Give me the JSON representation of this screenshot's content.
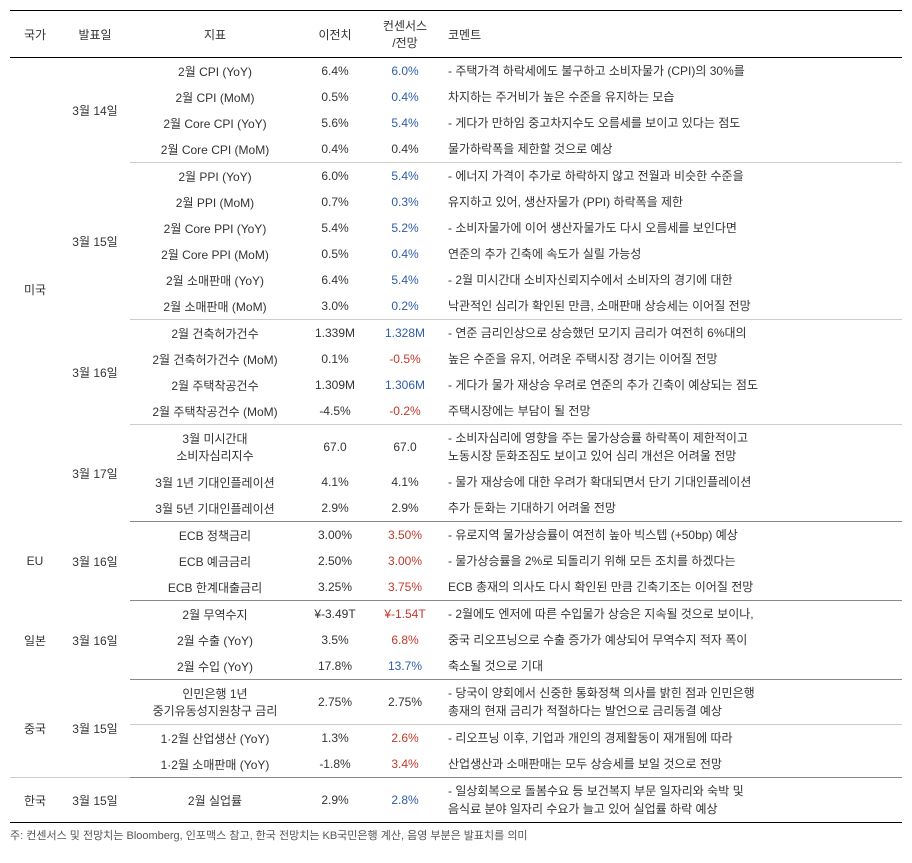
{
  "headers": {
    "country": "국가",
    "date": "발표일",
    "indicator": "지표",
    "prev": "이전치",
    "consensus": "컨센서스\n/전망",
    "comment": "코멘트"
  },
  "colors": {
    "blue": "#2e5ca8",
    "red": "#c0392b",
    "text": "#333333",
    "border_dark": "#000000",
    "border_light": "#cccccc"
  },
  "rows": [
    {
      "country": "미국",
      "date": "3월 14일",
      "ind": "2월 CPI (YoY)",
      "prev": "6.4%",
      "cons": "6.0%",
      "cc": "blue",
      "comment": "- 주택가격 하락세에도 불구하고 소비자물가 (CPI)의 30%를"
    },
    {
      "ind": "2월 CPI (MoM)",
      "prev": "0.5%",
      "cons": "0.4%",
      "cc": "blue",
      "comment": "차지하는 주거비가 높은 수준을 유지하는 모습"
    },
    {
      "ind": "2월 Core CPI (YoY)",
      "prev": "5.6%",
      "cons": "5.4%",
      "cc": "blue",
      "comment": "- 게다가 만하임 중고차지수도 오름세를 보이고 있다는 점도"
    },
    {
      "ind": "2월 Core CPI (MoM)",
      "prev": "0.4%",
      "cons": "0.4%",
      "cc": "",
      "comment": "물가하락폭을 제한할 것으로 예상",
      "thin": true
    },
    {
      "date": "3월 15일",
      "ind": "2월 PPI (YoY)",
      "prev": "6.0%",
      "cons": "5.4%",
      "cc": "blue",
      "comment": "- 에너지 가격이 추가로 하락하지 않고 전월과 비슷한 수준을"
    },
    {
      "ind": "2월 PPI (MoM)",
      "prev": "0.7%",
      "cons": "0.3%",
      "cc": "blue",
      "comment": "유지하고 있어, 생산자물가 (PPI) 하락폭을 제한"
    },
    {
      "ind": "2월 Core PPI (YoY)",
      "prev": "5.4%",
      "cons": "5.2%",
      "cc": "blue",
      "comment": "- 소비자물가에 이어 생산자물가도 다시 오름세를 보인다면"
    },
    {
      "ind": "2월 Core PPI (MoM)",
      "prev": "0.5%",
      "cons": "0.4%",
      "cc": "blue",
      "comment": "연준의 추가 긴축에 속도가 실릴 가능성"
    },
    {
      "ind": "2월 소매판매 (YoY)",
      "prev": "6.4%",
      "cons": "5.4%",
      "cc": "blue",
      "comment": "- 2월 미시간대 소비자신뢰지수에서 소비자의 경기에 대한"
    },
    {
      "ind": "2월 소매판매 (MoM)",
      "prev": "3.0%",
      "cons": "0.2%",
      "cc": "blue",
      "comment": "낙관적인 심리가 확인된 만큼, 소매판매 상승세는 이어질 전망",
      "thin": true
    },
    {
      "date": "3월 16일",
      "ind": "2월 건축허가건수",
      "prev": "1.339M",
      "cons": "1.328M",
      "cc": "blue",
      "comment": "- 연준 금리인상으로 상승했던 모기지 금리가 여전히 6%대의"
    },
    {
      "ind": "2월 건축허가건수 (MoM)",
      "prev": "0.1%",
      "cons": "-0.5%",
      "cc": "red",
      "comment": "높은 수준을 유지, 어려운 주택시장 경기는 이어질 전망"
    },
    {
      "ind": "2월 주택착공건수",
      "prev": "1.309M",
      "cons": "1.306M",
      "cc": "blue",
      "comment": "- 게다가 물가 재상승 우려로 연준의 추가 긴축이 예상되는 점도"
    },
    {
      "ind": "2월 주택착공건수 (MoM)",
      "prev": "-4.5%",
      "cons": "-0.2%",
      "cc": "red",
      "comment": "주택시장에는 부담이 될 전망",
      "thin": true
    },
    {
      "date": "3월 17일",
      "ind": "3월 미시간대\n소비자심리지수",
      "prev": "67.0",
      "cons": "67.0",
      "cc": "",
      "comment": "- 소비자심리에 영향을 주는 물가상승률 하락폭이 제한적이고\n노동시장 둔화조짐도 보이고 있어 심리 개선은 어려울 전망"
    },
    {
      "ind": "3월 1년 기대인플레이션",
      "prev": "4.1%",
      "cons": "4.1%",
      "cc": "",
      "comment": "- 물가 재상승에 대한 우려가 확대되면서 단기 기대인플레이션"
    },
    {
      "ind": "3월 5년 기대인플레이션",
      "prev": "2.9%",
      "cons": "2.9%",
      "cc": "",
      "comment": "추가 둔화는 기대하기 어려울 전망",
      "sep": true
    },
    {
      "country": "EU",
      "date": "3월 16일",
      "ind": "ECB 정책금리",
      "prev": "3.00%",
      "cons": "3.50%",
      "cc": "red",
      "comment": "- 유로지역 물가상승률이 여전히 높아 빅스텝 (+50bp) 예상"
    },
    {
      "ind": "ECB 예금금리",
      "prev": "2.50%",
      "cons": "3.00%",
      "cc": "red",
      "comment": "- 물가상승률을 2%로 되돌리기 위해 모든 조치를 하겠다는"
    },
    {
      "ind": "ECB 한계대출금리",
      "prev": "3.25%",
      "cons": "3.75%",
      "cc": "red",
      "comment": "ECB 총재의 의사도 다시 확인된 만큼 긴축기조는 이어질 전망",
      "sep": true
    },
    {
      "country": "일본",
      "date": "3월 16일",
      "ind": "2월 무역수지",
      "prev": "¥-3.49T",
      "cons": "¥-1.54T",
      "cc": "red",
      "comment": "- 2월에도 엔저에 따른 수입물가 상승은 지속될 것으로 보이나,"
    },
    {
      "ind": "2월 수출 (YoY)",
      "prev": "3.5%",
      "cons": "6.8%",
      "cc": "red",
      "comment": "중국 리오프닝으로 수출 증가가 예상되어 무역수지 적자 폭이"
    },
    {
      "ind": "2월 수입 (YoY)",
      "prev": "17.8%",
      "cons": "13.7%",
      "cc": "blue",
      "comment": "축소될 것으로 기대",
      "sep": true
    },
    {
      "country": "중국",
      "date": "3월 15일",
      "ind": "인민은행 1년\n중기유동성지원창구 금리",
      "prev": "2.75%",
      "cons": "2.75%",
      "cc": "",
      "comment": "- 당국이 양회에서 신중한 통화정책 의사를 밝힌 점과 인민은행\n총재의 현재 금리가 적절하다는 발언으로 금리동결 예상",
      "thin": true
    },
    {
      "ind": "1·2월 산업생산 (YoY)",
      "prev": "1.3%",
      "cons": "2.6%",
      "cc": "red",
      "comment": "- 리오프닝 이후, 기업과 개인의 경제활동이 재개됨에 따라"
    },
    {
      "ind": "1·2월 소매판매 (YoY)",
      "prev": "-1.8%",
      "cons": "3.4%",
      "cc": "red",
      "comment": "산업생산과 소매판매는 모두 상승세를 보일 것으로 전망",
      "sep": true
    },
    {
      "country": "한국",
      "date": "3월 15일",
      "ind": "2월 실업률",
      "prev": "2.9%",
      "cons": "2.8%",
      "cc": "blue",
      "comment": "- 일상회복으로 돌봄수요 등 보건복지 부문 일자리와 숙박 및\n음식료 분야 일자리 수요가 늘고 있어 실업률 하락 예상",
      "last": true
    }
  ],
  "footnote": "주: 컨센서스 및 전망치는 Bloomberg, 인포맥스 참고, 한국 전망치는 KB국민은행 계산, 음영 부분은 발표치를 의미"
}
